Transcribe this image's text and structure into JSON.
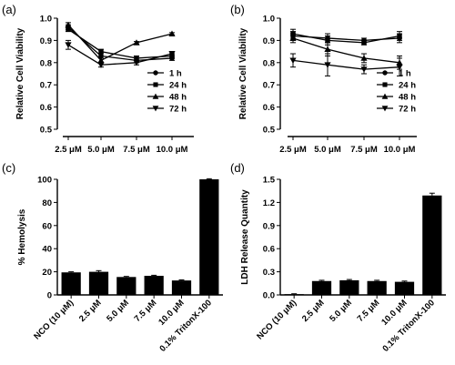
{
  "chart_data": [
    {
      "panel": "(a)",
      "type": "line",
      "ylabel": "Relative Cell Viability",
      "ylim": [
        0.5,
        1.0
      ],
      "yticks": [
        "0.5",
        "0.6",
        "0.7",
        "0.8",
        "0.9",
        "1.0"
      ],
      "categories": [
        "2.5 μM",
        "5.0 μM",
        "7.5 μM",
        "10.0 μM"
      ],
      "legend_position": "bottom-right",
      "series": [
        {
          "name": "1 h",
          "marker": "circle",
          "values": [
            0.96,
            0.83,
            0.81,
            0.82
          ],
          "err": [
            0.01,
            0.01,
            0.01,
            0.01
          ]
        },
        {
          "name": "24 h",
          "marker": "square",
          "values": [
            0.95,
            0.85,
            0.82,
            0.83
          ],
          "err": [
            0.01,
            0.01,
            0.01,
            0.01
          ]
        },
        {
          "name": "48 h",
          "marker": "triangle-up",
          "values": [
            0.97,
            0.81,
            0.89,
            0.93
          ],
          "err": [
            0.01,
            0.01,
            0.005,
            0.005
          ]
        },
        {
          "name": "72 h",
          "marker": "triangle-down",
          "values": [
            0.88,
            0.79,
            0.8,
            0.84
          ],
          "err": [
            0.02,
            0.01,
            0.01,
            0.01
          ]
        }
      ]
    },
    {
      "panel": "(b)",
      "type": "line",
      "ylabel": "Relative Cell Viability",
      "ylim": [
        0.5,
        1.0
      ],
      "yticks": [
        "0.5",
        "0.6",
        "0.7",
        "0.8",
        "0.9",
        "1.0"
      ],
      "categories": [
        "2.5 μM",
        "5.0 μM",
        "7.5 μM",
        "10.0 μM"
      ],
      "legend_position": "bottom-right",
      "series": [
        {
          "name": "1 h",
          "marker": "circle",
          "values": [
            0.92,
            0.91,
            0.9,
            0.91
          ],
          "err": [
            0.02,
            0.02,
            0.01,
            0.02
          ]
        },
        {
          "name": "24 h",
          "marker": "square",
          "values": [
            0.93,
            0.9,
            0.89,
            0.92
          ],
          "err": [
            0.02,
            0.02,
            0.01,
            0.02
          ]
        },
        {
          "name": "48 h",
          "marker": "triangle-up",
          "values": [
            0.91,
            0.86,
            0.82,
            0.8
          ],
          "err": [
            0.02,
            0.03,
            0.02,
            0.03
          ]
        },
        {
          "name": "72 h",
          "marker": "triangle-down",
          "values": [
            0.81,
            0.79,
            0.77,
            0.78
          ],
          "err": [
            0.03,
            0.05,
            0.02,
            0.04
          ]
        }
      ]
    },
    {
      "panel": "(c)",
      "type": "bar",
      "ylabel": "% Hemolysis",
      "ylim": [
        0,
        100
      ],
      "yticks": [
        "0",
        "20",
        "40",
        "60",
        "80",
        "100"
      ],
      "categories": [
        "NCO (10 μM)",
        "2.5 μM",
        "5.0 μM",
        "7.5 μM",
        "10.0 μM",
        "0.1% TritonX-100"
      ],
      "values": [
        19.5,
        20.0,
        15.5,
        16.5,
        12.5,
        100
      ],
      "err": [
        0.5,
        1.0,
        0.5,
        0.5,
        0.5,
        0.5
      ]
    },
    {
      "panel": "(d)",
      "type": "bar",
      "ylabel": "LDH Release Quantity",
      "ylim": [
        0,
        1.5
      ],
      "yticks": [
        "0.0",
        "0.3",
        "0.6",
        "0.9",
        "1.2",
        "1.5"
      ],
      "categories": [
        "NCO (10 μM)",
        "2.5 μM",
        "5.0 μM",
        "7.5 μM",
        "10.0 μM",
        "0.1% TritonX-100"
      ],
      "values": [
        0.01,
        0.18,
        0.19,
        0.18,
        0.17,
        1.29
      ],
      "err": [
        0.005,
        0.01,
        0.01,
        0.01,
        0.01,
        0.03
      ]
    }
  ]
}
